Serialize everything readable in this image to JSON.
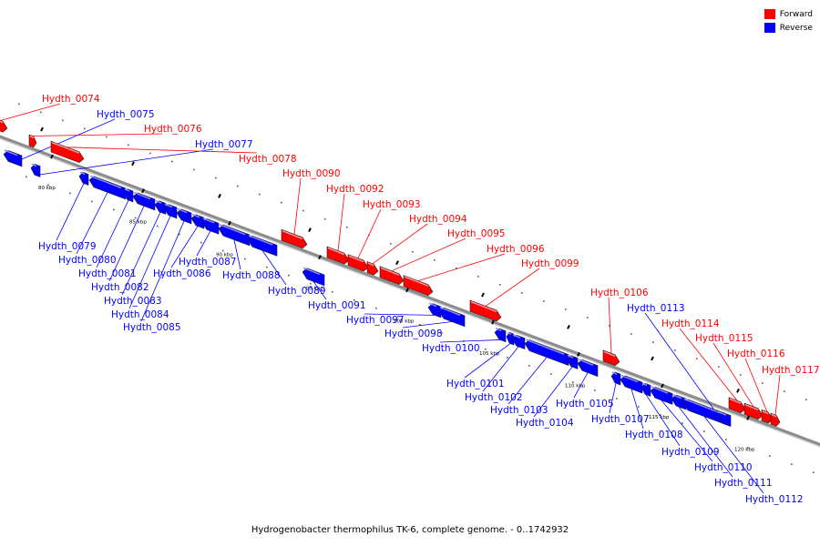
{
  "legend": [
    {
      "label": "Forward",
      "color": "#ff0000"
    },
    {
      "label": "Reverse",
      "color": "#0000ff"
    }
  ],
  "caption": "Hydrogenobacter thermophilus TK-6, complete genome. - 0..1742932",
  "colors": {
    "forward": "#ff0000",
    "reverse": "#0000ff",
    "backbone": "#8c8c8c",
    "leader_forward": "#ff0000",
    "leader_reverse": "#0000ff"
  },
  "scale_labels": [
    "80 kbp",
    "85 kbp",
    "90 kbp",
    "95 kbp",
    "100 kbp",
    "105 kbp",
    "110 kbp",
    "115 kbp",
    "120 kbp"
  ],
  "genes": [
    {
      "name": "Hydth_0074",
      "strand": "forward"
    },
    {
      "name": "Hydth_0075",
      "strand": "reverse"
    },
    {
      "name": "Hydth_0076",
      "strand": "forward"
    },
    {
      "name": "Hydth_0077",
      "strand": "reverse"
    },
    {
      "name": "Hydth_0078",
      "strand": "forward"
    },
    {
      "name": "Hydth_0079",
      "strand": "reverse"
    },
    {
      "name": "Hydth_0080",
      "strand": "reverse"
    },
    {
      "name": "Hydth_0081",
      "strand": "reverse"
    },
    {
      "name": "Hydth_0082",
      "strand": "reverse"
    },
    {
      "name": "Hydth_0083",
      "strand": "reverse"
    },
    {
      "name": "Hydth_0084",
      "strand": "reverse"
    },
    {
      "name": "Hydth_0085",
      "strand": "reverse"
    },
    {
      "name": "Hydth_0086",
      "strand": "reverse"
    },
    {
      "name": "Hydth_0087",
      "strand": "reverse"
    },
    {
      "name": "Hydth_0088",
      "strand": "reverse"
    },
    {
      "name": "Hydth_0089",
      "strand": "reverse"
    },
    {
      "name": "Hydth_0090",
      "strand": "forward"
    },
    {
      "name": "Hydth_0091",
      "strand": "reverse"
    },
    {
      "name": "Hydth_0092",
      "strand": "forward"
    },
    {
      "name": "Hydth_0093",
      "strand": "forward"
    },
    {
      "name": "Hydth_0094",
      "strand": "forward"
    },
    {
      "name": "Hydth_0095",
      "strand": "forward"
    },
    {
      "name": "Hydth_0096",
      "strand": "forward"
    },
    {
      "name": "Hydth_0097",
      "strand": "reverse"
    },
    {
      "name": "Hydth_0098",
      "strand": "reverse"
    },
    {
      "name": "Hydth_0099",
      "strand": "forward"
    },
    {
      "name": "Hydth_0100",
      "strand": "reverse"
    },
    {
      "name": "Hydth_0101",
      "strand": "reverse"
    },
    {
      "name": "Hydth_0102",
      "strand": "reverse"
    },
    {
      "name": "Hydth_0103",
      "strand": "reverse"
    },
    {
      "name": "Hydth_0104",
      "strand": "reverse"
    },
    {
      "name": "Hydth_0105",
      "strand": "reverse"
    },
    {
      "name": "Hydth_0106",
      "strand": "forward"
    },
    {
      "name": "Hydth_0107",
      "strand": "reverse"
    },
    {
      "name": "Hydth_0108",
      "strand": "reverse"
    },
    {
      "name": "Hydth_0109",
      "strand": "reverse"
    },
    {
      "name": "Hydth_0110",
      "strand": "reverse"
    },
    {
      "name": "Hydth_0111",
      "strand": "reverse"
    },
    {
      "name": "Hydth_0112",
      "strand": "reverse"
    },
    {
      "name": "Hydth_0113",
      "strand": "reverse"
    },
    {
      "name": "Hydth_0114",
      "strand": "forward"
    },
    {
      "name": "Hydth_0115",
      "strand": "forward"
    },
    {
      "name": "Hydth_0116",
      "strand": "forward"
    },
    {
      "name": "Hydth_0117",
      "strand": "forward"
    }
  ]
}
